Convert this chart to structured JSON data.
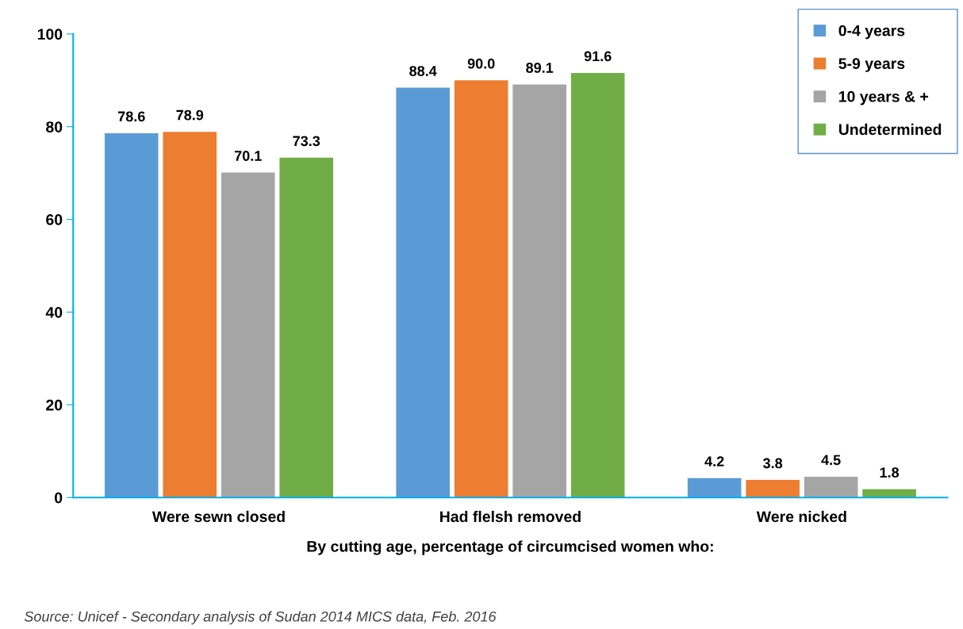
{
  "chart_data": {
    "type": "bar",
    "categories": [
      "Were sewn closed",
      "Had flelsh removed",
      "Were nicked"
    ],
    "series": [
      {
        "name": "0-4 years",
        "color": "#5b9bd5",
        "values": [
          78.6,
          88.4,
          4.2
        ],
        "value_labels": [
          "78.6",
          "88.4",
          "4.2"
        ]
      },
      {
        "name": "5-9 years",
        "color": "#ed7d31",
        "values": [
          78.9,
          90,
          3.8
        ],
        "value_labels": [
          "78.9",
          "90.0",
          "3.8"
        ]
      },
      {
        "name": "10 years & +",
        "color": "#a5a5a5",
        "values": [
          70.1,
          89.1,
          4.5
        ],
        "value_labels": [
          "70.1",
          "89.1",
          "4.5"
        ]
      },
      {
        "name": "Undetermined",
        "color": "#70ad47",
        "values": [
          73.3,
          91.6,
          1.8
        ],
        "value_labels": [
          "73.3",
          "91.6",
          "1.8"
        ]
      }
    ],
    "xlabel": "By cutting age, percentage of circumcised women who:",
    "ylim": [
      0,
      100
    ],
    "yticks": [
      0,
      20,
      40,
      60,
      80,
      100
    ],
    "grid": false,
    "legend": "top right",
    "annotations": [
      "Source: Unicef - Secondary analysis of Sudan 2014 MICS data, Feb. 2016"
    ]
  }
}
